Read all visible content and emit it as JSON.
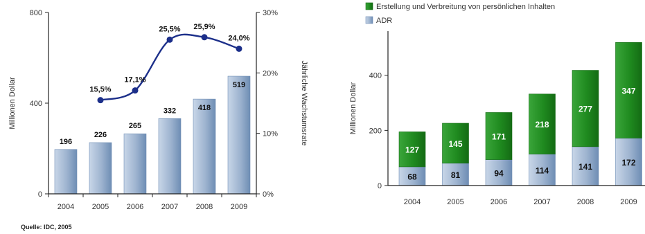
{
  "source_note": "Quelle: IDC, 2005",
  "colors": {
    "bar_blue": "#9db3cf",
    "bar_blue_dark": "#6e8db4",
    "bar_green": "#1f8a1f",
    "line": "#1c2f8a",
    "axis": "#222222"
  },
  "chart_data": [
    {
      "type": "bar",
      "categories": [
        "2004",
        "2005",
        "2006",
        "2007",
        "2008",
        "2009"
      ],
      "series": [
        {
          "values": [
            196,
            226,
            265,
            332,
            418,
            519
          ],
          "labels": [
            "196",
            "226",
            "265",
            "332",
            "418",
            "519"
          ]
        }
      ],
      "secondary_series": [
        {
          "type": "line",
          "x": [
            "2005",
            "2006",
            "2007",
            "2008",
            "2009"
          ],
          "values": [
            15.5,
            17.1,
            25.5,
            25.9,
            24.0
          ],
          "labels": [
            "15,5%",
            "17,1%",
            "25,5%",
            "25,9%",
            "24,0%"
          ]
        }
      ],
      "ylabel": "Millionen Dollar",
      "y2label": "Jährliche Wachstumsrate",
      "ylim": [
        0,
        800
      ],
      "yticks": [
        "0",
        "400",
        "800"
      ],
      "y2lim": [
        0,
        30
      ],
      "y2ticks": [
        "0%",
        "10%",
        "20%",
        "30%"
      ],
      "grid": false
    },
    {
      "type": "bar",
      "stacked": true,
      "categories": [
        "2004",
        "2005",
        "2006",
        "2007",
        "2008",
        "2009"
      ],
      "series": [
        {
          "name": "ADR",
          "values": [
            68,
            81,
            94,
            114,
            141,
            172
          ]
        },
        {
          "name": "Erstellung und Verbreitung von persönlichen Inhalten",
          "values": [
            127,
            145,
            171,
            218,
            277,
            347
          ]
        }
      ],
      "legend_order": [
        "Erstellung und Verbreitung von persönlichen Inhalten",
        "ADR"
      ],
      "legend_position": "top",
      "ylabel": "Millionen Dollar",
      "ylim": [
        0,
        560
      ],
      "yticks": [
        "0",
        "200",
        "400"
      ],
      "grid": false
    }
  ]
}
